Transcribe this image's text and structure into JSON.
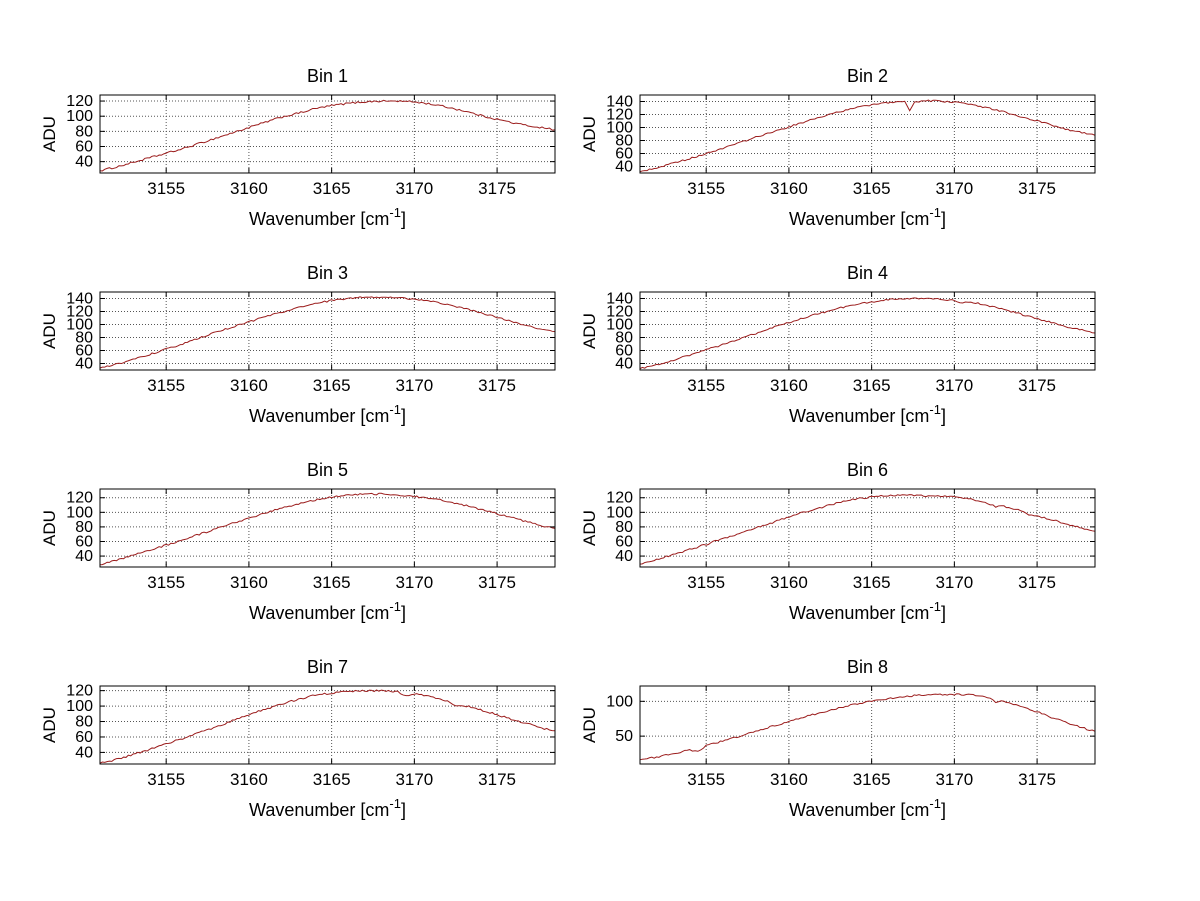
{
  "figure": {
    "background": "#ffffff",
    "layout": "4x2-grid-of-spectra"
  },
  "style": {
    "line_color": "#9b1c1c",
    "axis_color": "#000000",
    "grid_color": "#555555",
    "text_color": "#000000"
  },
  "chart_data": [
    {
      "type": "line",
      "title": "Bin 1",
      "ylabel": "ADU",
      "xlabel": {
        "text": "Wavenumber [cm",
        "sup": "-1",
        "end": "]"
      },
      "xlim": [
        3151,
        3178.5
      ],
      "ylim": [
        25,
        128
      ],
      "xticks": [
        3155,
        3160,
        3165,
        3170,
        3175
      ],
      "yticks": [
        40,
        60,
        80,
        100,
        120
      ],
      "grid": {
        "x": true,
        "y": true
      },
      "points": [
        [
          3151,
          28
        ],
        [
          3152,
          33
        ],
        [
          3153,
          39
        ],
        [
          3154,
          45
        ],
        [
          3155,
          51
        ],
        [
          3156,
          57
        ],
        [
          3157,
          64
        ],
        [
          3158,
          71
        ],
        [
          3159,
          78
        ],
        [
          3160,
          85
        ],
        [
          3161,
          92
        ],
        [
          3162,
          99
        ],
        [
          3163,
          104
        ],
        [
          3164,
          110
        ],
        [
          3165,
          114
        ],
        [
          3166,
          117
        ],
        [
          3167,
          119
        ],
        [
          3168,
          120
        ],
        [
          3169,
          120
        ],
        [
          3170,
          119
        ],
        [
          3171,
          116
        ],
        [
          3172,
          112
        ],
        [
          3173,
          107
        ],
        [
          3174,
          101
        ],
        [
          3175,
          96
        ],
        [
          3176,
          91
        ],
        [
          3177,
          87
        ],
        [
          3178,
          84
        ],
        [
          3178.5,
          82
        ]
      ]
    },
    {
      "type": "line",
      "title": "Bin 2",
      "ylabel": "ADU",
      "xlabel": {
        "text": "Wavenumber [cm",
        "sup": "-1",
        "end": "]"
      },
      "xlim": [
        3151,
        3178.5
      ],
      "ylim": [
        30,
        150
      ],
      "xticks": [
        3155,
        3160,
        3165,
        3170,
        3175
      ],
      "yticks": [
        40,
        60,
        80,
        100,
        120,
        140
      ],
      "grid": {
        "x": true,
        "y": true
      },
      "points": [
        [
          3151,
          32
        ],
        [
          3152,
          38
        ],
        [
          3153,
          45
        ],
        [
          3154,
          52
        ],
        [
          3155,
          60
        ],
        [
          3156,
          68
        ],
        [
          3157,
          76
        ],
        [
          3158,
          85
        ],
        [
          3159,
          93
        ],
        [
          3160,
          101
        ],
        [
          3161,
          109
        ],
        [
          3162,
          117
        ],
        [
          3163,
          124
        ],
        [
          3164,
          130
        ],
        [
          3165,
          135
        ],
        [
          3166,
          138
        ],
        [
          3167,
          140
        ],
        [
          3167.3,
          126
        ],
        [
          3167.6,
          139
        ],
        [
          3168,
          141
        ],
        [
          3169,
          141
        ],
        [
          3170,
          139
        ],
        [
          3171,
          136
        ],
        [
          3172,
          130
        ],
        [
          3173,
          124
        ],
        [
          3174,
          117
        ],
        [
          3175,
          110
        ],
        [
          3176,
          103
        ],
        [
          3177,
          96
        ],
        [
          3178,
          91
        ],
        [
          3178.5,
          88
        ]
      ]
    },
    {
      "type": "line",
      "title": "Bin 3",
      "ylabel": "ADU",
      "xlabel": {
        "text": "Wavenumber [cm",
        "sup": "-1",
        "end": "]"
      },
      "xlim": [
        3151,
        3178.5
      ],
      "ylim": [
        30,
        150
      ],
      "xticks": [
        3155,
        3160,
        3165,
        3170,
        3175
      ],
      "yticks": [
        40,
        60,
        80,
        100,
        120,
        140
      ],
      "grid": {
        "x": true,
        "y": true
      },
      "points": [
        [
          3151,
          33
        ],
        [
          3152,
          39
        ],
        [
          3153,
          46
        ],
        [
          3154,
          54
        ],
        [
          3155,
          62
        ],
        [
          3156,
          70
        ],
        [
          3157,
          79
        ],
        [
          3158,
          88
        ],
        [
          3159,
          96
        ],
        [
          3160,
          104
        ],
        [
          3161,
          112
        ],
        [
          3162,
          119
        ],
        [
          3163,
          126
        ],
        [
          3164,
          132
        ],
        [
          3165,
          137
        ],
        [
          3166,
          140
        ],
        [
          3167,
          142
        ],
        [
          3168,
          142
        ],
        [
          3169,
          141
        ],
        [
          3170,
          139
        ],
        [
          3171,
          136
        ],
        [
          3172,
          131
        ],
        [
          3173,
          125
        ],
        [
          3174,
          118
        ],
        [
          3175,
          111
        ],
        [
          3176,
          104
        ],
        [
          3177,
          97
        ],
        [
          3178,
          91
        ],
        [
          3178.5,
          89
        ]
      ]
    },
    {
      "type": "line",
      "title": "Bin 4",
      "ylabel": "ADU",
      "xlabel": {
        "text": "Wavenumber [cm",
        "sup": "-1",
        "end": "]"
      },
      "xlim": [
        3151,
        3178.5
      ],
      "ylim": [
        30,
        150
      ],
      "xticks": [
        3155,
        3160,
        3165,
        3170,
        3175
      ],
      "yticks": [
        40,
        60,
        80,
        100,
        120,
        140
      ],
      "grid": {
        "x": true,
        "y": true
      },
      "points": [
        [
          3151,
          32
        ],
        [
          3152,
          38
        ],
        [
          3153,
          45
        ],
        [
          3154,
          53
        ],
        [
          3155,
          61
        ],
        [
          3156,
          69
        ],
        [
          3157,
          78
        ],
        [
          3158,
          86
        ],
        [
          3159,
          95
        ],
        [
          3160,
          103
        ],
        [
          3161,
          111
        ],
        [
          3162,
          118
        ],
        [
          3163,
          125
        ],
        [
          3164,
          131
        ],
        [
          3165,
          135
        ],
        [
          3166,
          138
        ],
        [
          3167,
          140
        ],
        [
          3168,
          140
        ],
        [
          3169,
          139
        ],
        [
          3170,
          137
        ],
        [
          3170.5,
          133
        ],
        [
          3171,
          135
        ],
        [
          3172,
          129
        ],
        [
          3173,
          123
        ],
        [
          3174,
          116
        ],
        [
          3175,
          109
        ],
        [
          3176,
          102
        ],
        [
          3177,
          95
        ],
        [
          3178,
          90
        ],
        [
          3178.5,
          87
        ]
      ]
    },
    {
      "type": "line",
      "title": "Bin 5",
      "ylabel": "ADU",
      "xlabel": {
        "text": "Wavenumber [cm",
        "sup": "-1",
        "end": "]"
      },
      "xlim": [
        3151,
        3178.5
      ],
      "ylim": [
        25,
        132
      ],
      "xticks": [
        3155,
        3160,
        3165,
        3170,
        3175
      ],
      "yticks": [
        40,
        60,
        80,
        100,
        120
      ],
      "grid": {
        "x": true,
        "y": true
      },
      "points": [
        [
          3151,
          28
        ],
        [
          3152,
          34
        ],
        [
          3153,
          41
        ],
        [
          3154,
          48
        ],
        [
          3155,
          55
        ],
        [
          3156,
          62
        ],
        [
          3157,
          70
        ],
        [
          3158,
          77
        ],
        [
          3159,
          85
        ],
        [
          3160,
          92
        ],
        [
          3161,
          99
        ],
        [
          3162,
          106
        ],
        [
          3163,
          112
        ],
        [
          3164,
          117
        ],
        [
          3165,
          121
        ],
        [
          3166,
          124
        ],
        [
          3167,
          125
        ],
        [
          3168,
          125
        ],
        [
          3169,
          124
        ],
        [
          3170,
          122
        ],
        [
          3171,
          119
        ],
        [
          3172,
          115
        ],
        [
          3173,
          110
        ],
        [
          3174,
          104
        ],
        [
          3175,
          98
        ],
        [
          3176,
          92
        ],
        [
          3177,
          86
        ],
        [
          3178,
          80
        ],
        [
          3178.5,
          78
        ]
      ]
    },
    {
      "type": "line",
      "title": "Bin 6",
      "ylabel": "ADU",
      "xlabel": {
        "text": "Wavenumber [cm",
        "sup": "-1",
        "end": "]"
      },
      "xlim": [
        3151,
        3178.5
      ],
      "ylim": [
        25,
        132
      ],
      "xticks": [
        3155,
        3160,
        3165,
        3170,
        3175
      ],
      "yticks": [
        40,
        60,
        80,
        100,
        120
      ],
      "grid": {
        "x": true,
        "y": true
      },
      "points": [
        [
          3151,
          29
        ],
        [
          3152,
          35
        ],
        [
          3153,
          42
        ],
        [
          3154,
          49
        ],
        [
          3155,
          56
        ],
        [
          3156,
          64
        ],
        [
          3157,
          71
        ],
        [
          3158,
          79
        ],
        [
          3159,
          86
        ],
        [
          3160,
          94
        ],
        [
          3161,
          101
        ],
        [
          3162,
          107
        ],
        [
          3163,
          113
        ],
        [
          3164,
          118
        ],
        [
          3165,
          121
        ],
        [
          3166,
          123
        ],
        [
          3167,
          124
        ],
        [
          3168,
          123
        ],
        [
          3169,
          122
        ],
        [
          3170,
          121
        ],
        [
          3171,
          118
        ],
        [
          3172,
          113
        ],
        [
          3172.5,
          108
        ],
        [
          3173,
          108
        ],
        [
          3174,
          102
        ],
        [
          3174.5,
          96
        ],
        [
          3175,
          95
        ],
        [
          3176,
          89
        ],
        [
          3177,
          83
        ],
        [
          3178,
          77
        ],
        [
          3178.5,
          74
        ]
      ]
    },
    {
      "type": "line",
      "title": "Bin 7",
      "ylabel": "ADU",
      "xlabel": {
        "text": "Wavenumber [cm",
        "sup": "-1",
        "end": "]"
      },
      "xlim": [
        3151,
        3178.5
      ],
      "ylim": [
        25,
        126
      ],
      "xticks": [
        3155,
        3160,
        3165,
        3170,
        3175
      ],
      "yticks": [
        40,
        60,
        80,
        100,
        120
      ],
      "grid": {
        "x": true,
        "y": true
      },
      "points": [
        [
          3151,
          26
        ],
        [
          3152,
          31
        ],
        [
          3153,
          37
        ],
        [
          3154,
          44
        ],
        [
          3155,
          51
        ],
        [
          3156,
          58
        ],
        [
          3157,
          66
        ],
        [
          3158,
          73
        ],
        [
          3159,
          81
        ],
        [
          3160,
          89
        ],
        [
          3161,
          96
        ],
        [
          3162,
          103
        ],
        [
          3163,
          109
        ],
        [
          3164,
          114
        ],
        [
          3165,
          117
        ],
        [
          3166,
          119
        ],
        [
          3167,
          120
        ],
        [
          3168,
          120
        ],
        [
          3169,
          118
        ],
        [
          3169.5,
          114
        ],
        [
          3170,
          116
        ],
        [
          3171,
          112
        ],
        [
          3172,
          107
        ],
        [
          3172.5,
          100
        ],
        [
          3173,
          101
        ],
        [
          3174,
          95
        ],
        [
          3175,
          89
        ],
        [
          3176,
          82
        ],
        [
          3177,
          76
        ],
        [
          3178,
          70
        ],
        [
          3178.5,
          68
        ]
      ]
    },
    {
      "type": "line",
      "title": "Bin 8",
      "ylabel": "ADU",
      "xlabel": {
        "text": "Wavenumber [cm",
        "sup": "-1",
        "end": "]"
      },
      "xlim": [
        3151,
        3178.5
      ],
      "ylim": [
        10,
        122
      ],
      "xticks": [
        3155,
        3160,
        3165,
        3170,
        3175
      ],
      "yticks": [
        50,
        100
      ],
      "grid": {
        "x": true,
        "y": true
      },
      "points": [
        [
          3151,
          16
        ],
        [
          3152,
          20
        ],
        [
          3153,
          25
        ],
        [
          3154,
          30
        ],
        [
          3154.5,
          28
        ],
        [
          3155,
          36
        ],
        [
          3156,
          43
        ],
        [
          3157,
          50
        ],
        [
          3158,
          57
        ],
        [
          3159,
          64
        ],
        [
          3160,
          71
        ],
        [
          3161,
          78
        ],
        [
          3162,
          84
        ],
        [
          3163,
          90
        ],
        [
          3164,
          96
        ],
        [
          3165,
          100
        ],
        [
          3166,
          104
        ],
        [
          3167,
          107
        ],
        [
          3168,
          109
        ],
        [
          3169,
          110
        ],
        [
          3170,
          110
        ],
        [
          3171,
          109
        ],
        [
          3172,
          106
        ],
        [
          3172.5,
          99
        ],
        [
          3173,
          100
        ],
        [
          3174,
          93
        ],
        [
          3175,
          85
        ],
        [
          3176,
          76
        ],
        [
          3177,
          68
        ],
        [
          3178,
          60
        ],
        [
          3178.5,
          57
        ]
      ]
    }
  ]
}
